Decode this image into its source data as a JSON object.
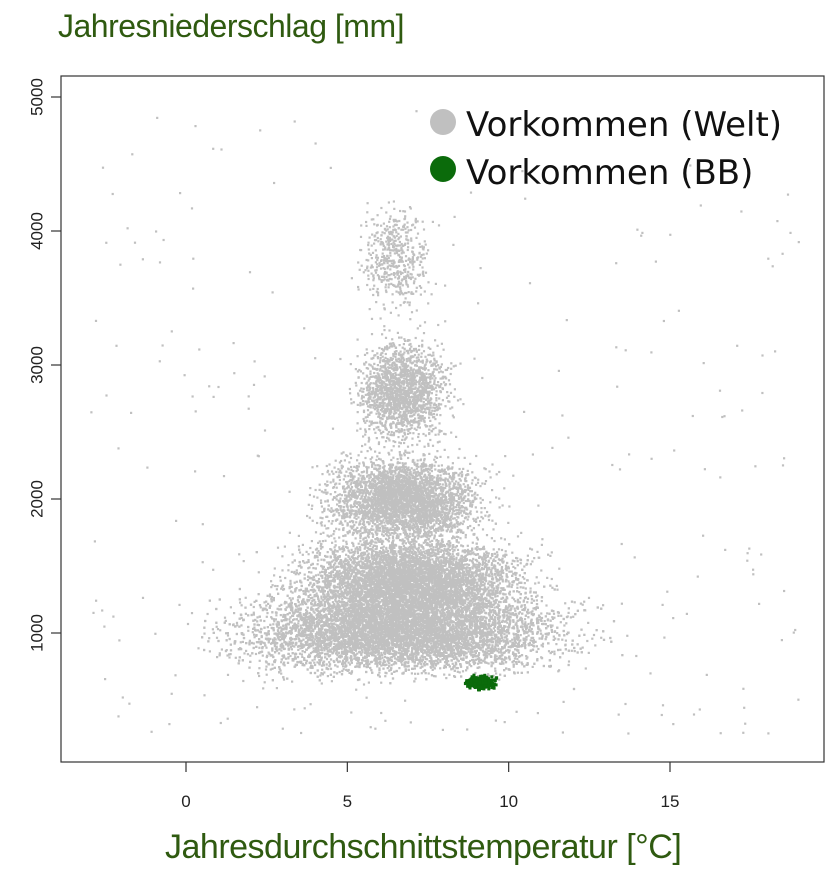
{
  "chart_data": {
    "type": "scatter",
    "title": "",
    "ylabel": "Jahresniederschlag [mm]",
    "xlabel": "Jahresdurchschnittstemperatur [°C]",
    "xlim": [
      -3.7,
      19.7
    ],
    "ylim": [
      200,
      5200
    ],
    "x_ticks": [
      0,
      5,
      10,
      15
    ],
    "y_ticks": [
      1000,
      2000,
      3000,
      4000,
      5000
    ],
    "grid": false,
    "legend_position": "top-right",
    "series": [
      {
        "name": "Vorkommen (Welt)",
        "color": "#c0c0c0",
        "description_points": "dense cloud",
        "clusters": [
          {
            "x_range": [
              -1.2,
              14.6
            ],
            "y_range": [
              520,
              1500
            ],
            "count": 9000
          },
          {
            "x_range": [
              1.5,
              12.5
            ],
            "y_range": [
              900,
              1900
            ],
            "count": 6000
          },
          {
            "x_range": [
              3.0,
              10.5
            ],
            "y_range": [
              1500,
              2500
            ],
            "count": 3500
          },
          {
            "x_range": [
              4.5,
              9.0
            ],
            "y_range": [
              2200,
              3400
            ],
            "count": 1800
          },
          {
            "x_range": [
              4.8,
              8.2
            ],
            "y_range": [
              3200,
              4400
            ],
            "count": 500
          },
          {
            "x_range": [
              -3.0,
              19.0
            ],
            "y_range": [
              250,
              4950
            ],
            "count": 300
          }
        ]
      },
      {
        "name": "Vorkommen (BB)",
        "color": "#0b6b0b",
        "clusters": [
          {
            "x_range": [
              8.5,
              9.8
            ],
            "y_range": [
              560,
              700
            ],
            "count": 400
          }
        ]
      }
    ]
  }
}
